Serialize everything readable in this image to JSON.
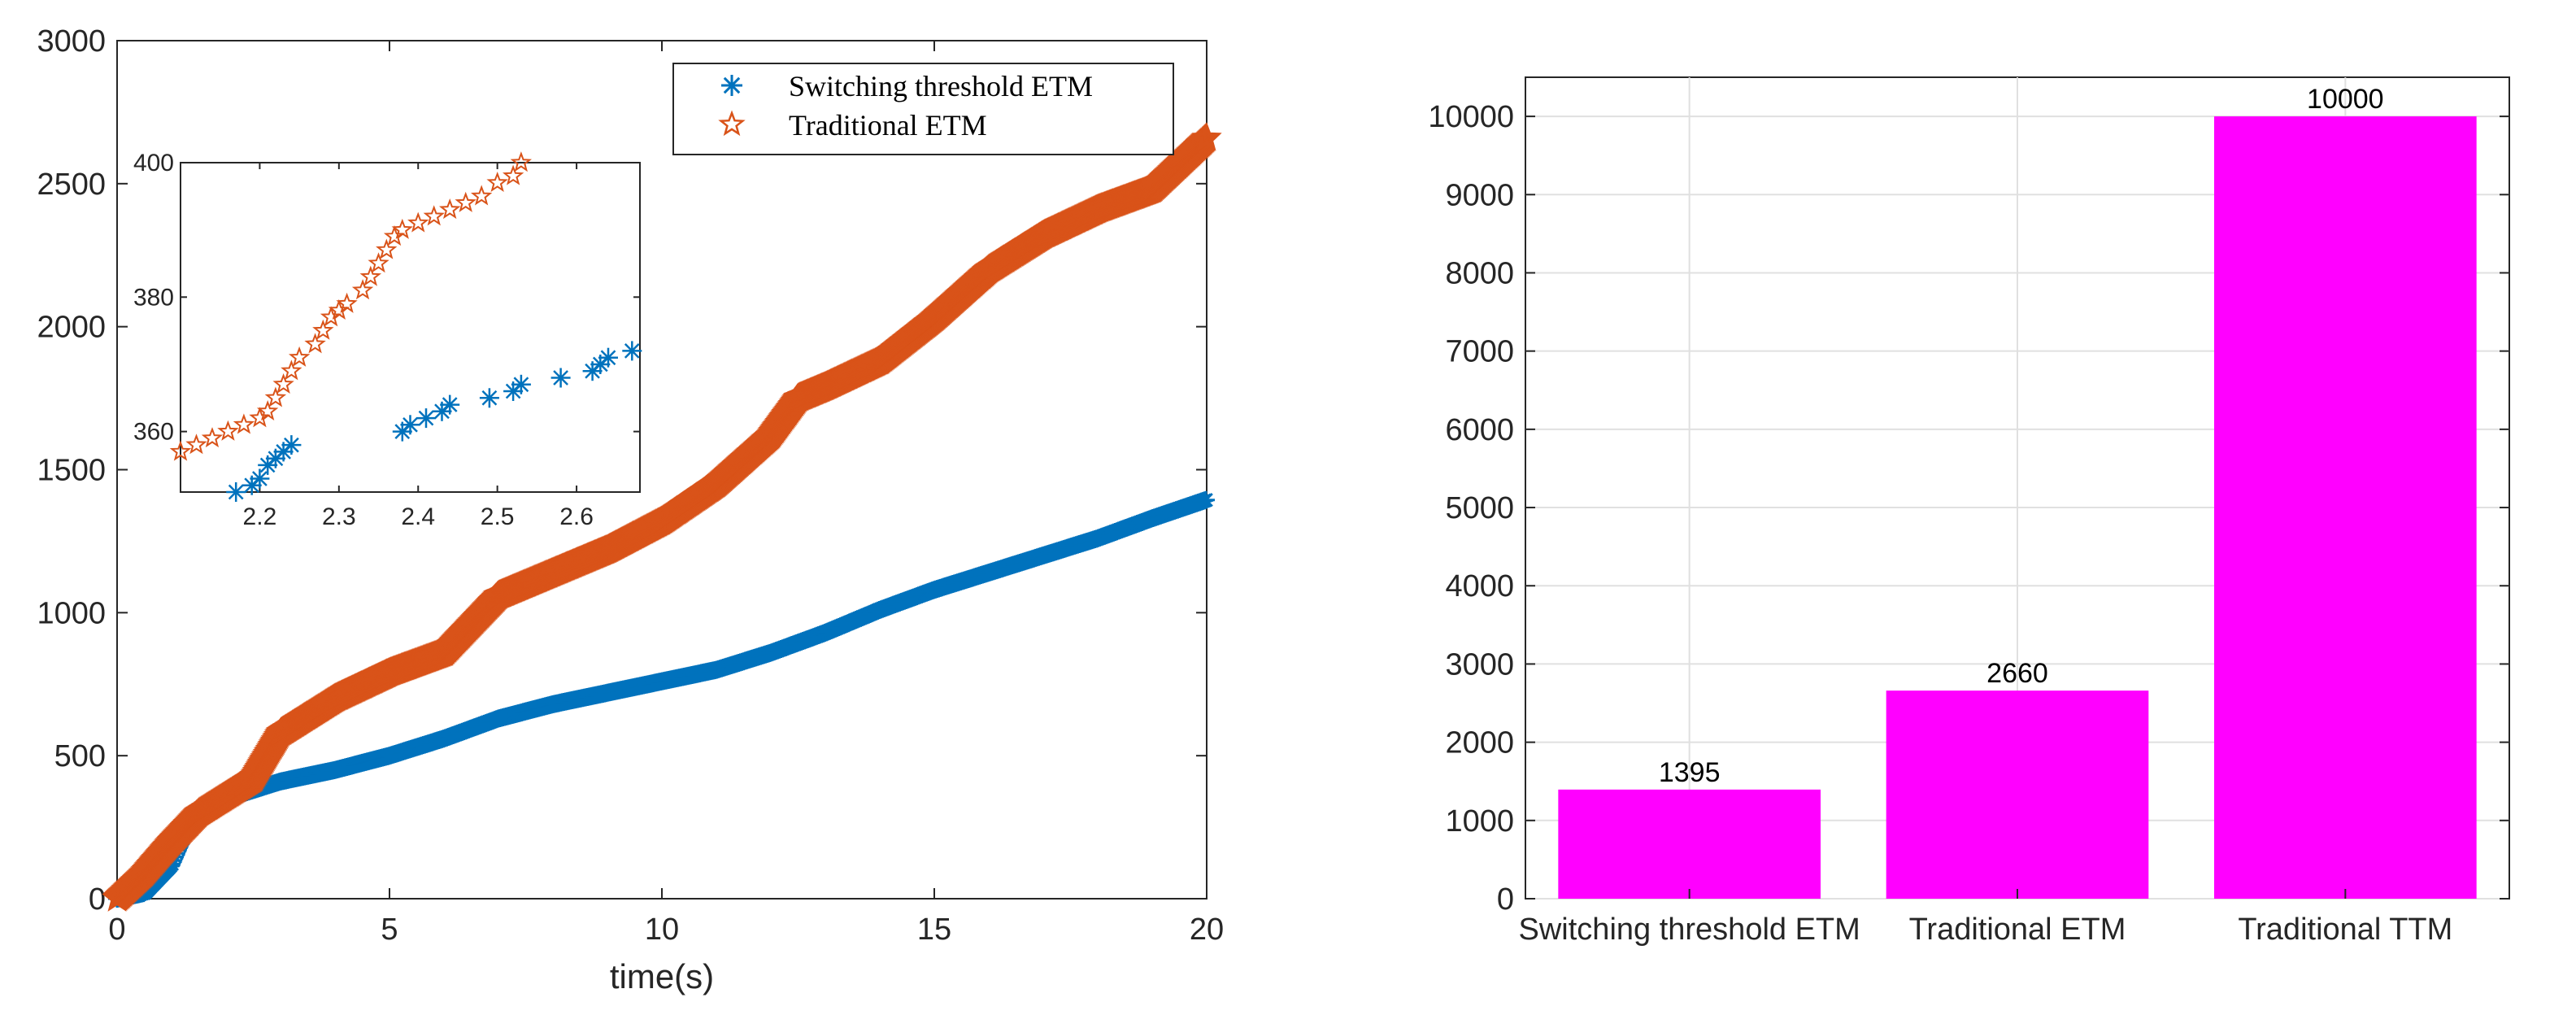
{
  "chart_data": [
    {
      "type": "scatter",
      "xlabel": "time(s)",
      "ylabel": "",
      "xlim": [
        0,
        20
      ],
      "ylim": [
        0,
        3000
      ],
      "xticks": [
        "0",
        "5",
        "10",
        "15",
        "20"
      ],
      "yticks": [
        "0",
        "500",
        "1000",
        "1500",
        "2000",
        "2500",
        "3000"
      ],
      "grid": false,
      "legend_position": "top-right",
      "series": [
        {
          "name": "Switching threshold ETM",
          "marker": "asterisk",
          "color": "#0072BD",
          "x": [
            0,
            0.5,
            1.0,
            1.3,
            1.6,
            2.0,
            2.5,
            3,
            4,
            5,
            6,
            7,
            8,
            9,
            10,
            11,
            12,
            13,
            14,
            15,
            16,
            17,
            18,
            19,
            20
          ],
          "y": [
            0,
            20,
            120,
            250,
            320,
            350,
            380,
            410,
            450,
            500,
            560,
            630,
            680,
            720,
            760,
            800,
            860,
            930,
            1010,
            1080,
            1140,
            1200,
            1260,
            1330,
            1395
          ]
        },
        {
          "name": "Traditional ETM",
          "marker": "pentagram",
          "color": "#D95319",
          "x": [
            0,
            0.5,
            1.0,
            1.5,
            2.0,
            2.5,
            3,
            4,
            5,
            6,
            7,
            8,
            9,
            10,
            11,
            12,
            12.5,
            13,
            14,
            15,
            16,
            17,
            18,
            19,
            20
          ],
          "y": [
            0,
            90,
            200,
            300,
            360,
            420,
            580,
            700,
            790,
            860,
            1060,
            1140,
            1220,
            1320,
            1450,
            1620,
            1750,
            1790,
            1880,
            2030,
            2200,
            2320,
            2410,
            2480,
            2660
          ]
        }
      ],
      "inset": {
        "xlim": [
          2.1,
          2.68
        ],
        "ylim": [
          351,
          400
        ],
        "xticks": [
          "2.2",
          "2.3",
          "2.4",
          "2.5",
          "2.6"
        ],
        "yticks": [
          "360",
          "380",
          "400"
        ],
        "series": [
          {
            "name": "Switching threshold ETM",
            "x": [
              2.17,
              2.19,
              2.2,
              2.21,
              2.22,
              2.23,
              2.24,
              2.38,
              2.39,
              2.41,
              2.43,
              2.44,
              2.49,
              2.52,
              2.53,
              2.58,
              2.62,
              2.63,
              2.64,
              2.67
            ],
            "y": [
              351,
              352,
              353,
              355,
              356,
              357,
              358,
              360,
              361,
              362,
              363,
              364,
              365,
              366,
              367,
              368,
              369,
              370,
              371,
              372
            ]
          },
          {
            "name": "Traditional ETM",
            "x": [
              2.1,
              2.12,
              2.14,
              2.16,
              2.18,
              2.2,
              2.21,
              2.22,
              2.23,
              2.24,
              2.25,
              2.27,
              2.28,
              2.29,
              2.3,
              2.31,
              2.33,
              2.34,
              2.35,
              2.36,
              2.37,
              2.38,
              2.4,
              2.42,
              2.44,
              2.46,
              2.48,
              2.5,
              2.52,
              2.53
            ],
            "y": [
              357,
              358,
              359,
              360,
              361,
              362,
              363,
              365,
              367,
              369,
              371,
              373,
              375,
              377,
              378,
              379,
              381,
              383,
              385,
              387,
              389,
              390,
              391,
              392,
              393,
              394,
              395,
              397,
              398,
              400
            ]
          }
        ]
      }
    },
    {
      "type": "bar",
      "categories": [
        "Switching threshold ETM",
        "Traditional ETM",
        "Traditional TTM"
      ],
      "values": [
        1395,
        2660,
        10000
      ],
      "data_labels": [
        "1395",
        "2660",
        "10000"
      ],
      "color": "#FF00FF",
      "xlabel": "",
      "ylabel": "",
      "ylim": [
        0,
        10500
      ],
      "yticks": [
        "0",
        "1000",
        "2000",
        "3000",
        "4000",
        "5000",
        "6000",
        "7000",
        "8000",
        "9000",
        "10000"
      ],
      "grid": true
    }
  ]
}
